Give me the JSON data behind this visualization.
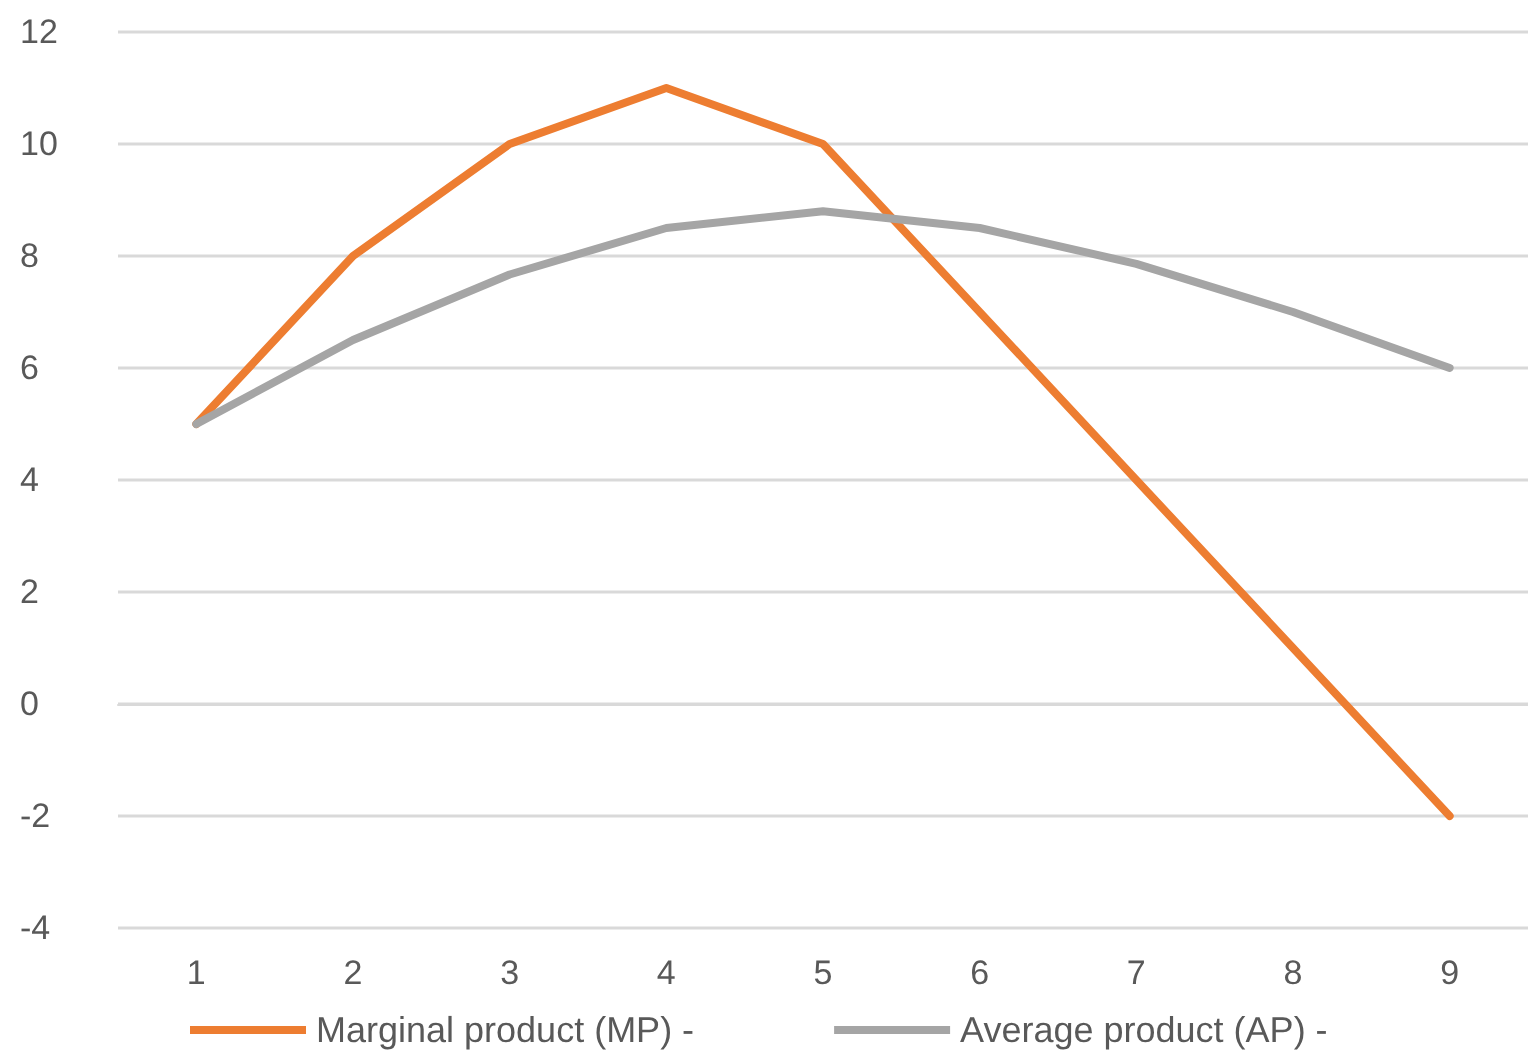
{
  "chart_data": {
    "type": "line",
    "categories": [
      "1",
      "2",
      "3",
      "4",
      "5",
      "6",
      "7",
      "8",
      "9"
    ],
    "series": [
      {
        "name": "Marginal product (MP) -",
        "color": "#ed7d31",
        "values": [
          5,
          8,
          10,
          11,
          10,
          7,
          4,
          1,
          -2
        ]
      },
      {
        "name": "Average product (AP) -",
        "color": "#a5a5a5",
        "values": [
          5,
          6.5,
          7.67,
          8.5,
          8.8,
          8.5,
          7.86,
          7,
          6
        ]
      }
    ],
    "ylim": [
      -4,
      12
    ],
    "yticks": [
      -4,
      -2,
      0,
      2,
      4,
      6,
      8,
      10,
      12
    ],
    "grid": "y",
    "legend": "bottom",
    "marker": "none",
    "line_style": "solid"
  }
}
